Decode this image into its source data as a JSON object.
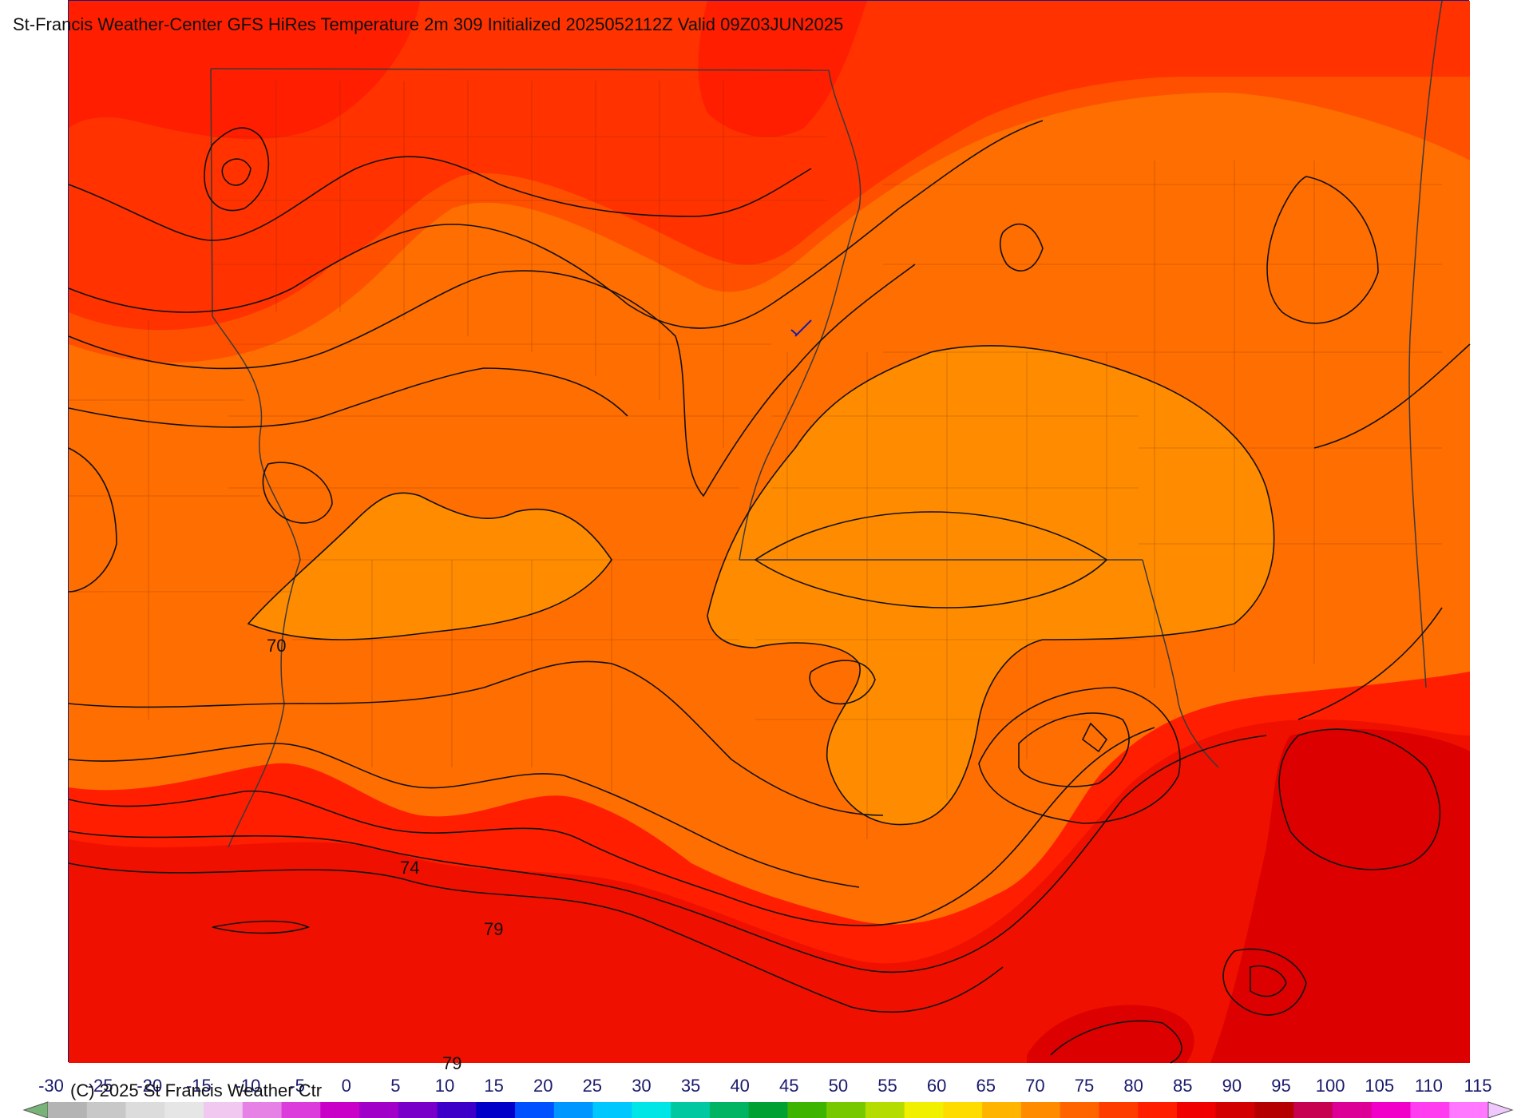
{
  "title": "St-Francis Weather-Center GFS HiRes Temperature 2m  309 Initialized 2025052112Z Valid 09Z03JUN2025",
  "copyright": "(C) 2025 St Francis Weather Ctr",
  "contour_labels": [
    {
      "id": "lbl-70",
      "text": "70"
    },
    {
      "id": "lbl-74",
      "text": "74"
    },
    {
      "id": "lbl-79",
      "text": "79"
    },
    {
      "id": "lbl-79b",
      "text": "79"
    }
  ],
  "colorbar": {
    "ticks": [
      "-30",
      "-25",
      "-20",
      "-15",
      "-10",
      "-5",
      "0",
      "5",
      "10",
      "15",
      "20",
      "25",
      "30",
      "35",
      "40",
      "45",
      "50",
      "55",
      "60",
      "65",
      "70",
      "75",
      "80",
      "85",
      "90",
      "95",
      "100",
      "105",
      "110",
      "115"
    ],
    "colors": [
      "#b4b4b4",
      "#c8c8c8",
      "#dcdcdc",
      "#e6e6e6",
      "#f0c8f0",
      "#e682e6",
      "#dc3cdc",
      "#c800c8",
      "#a000c8",
      "#7800c8",
      "#3c00c8",
      "#0000c8",
      "#0050ff",
      "#0096ff",
      "#00c8ff",
      "#00e6e6",
      "#00c8a0",
      "#00b464",
      "#00a032",
      "#3cb400",
      "#78c800",
      "#b4dc00",
      "#f0f000",
      "#ffdc00",
      "#ffb400",
      "#ff8c00",
      "#ff6400",
      "#ff3c00",
      "#ff1e00",
      "#f00000",
      "#d20000",
      "#b40000",
      "#c80050",
      "#dc0096",
      "#f000c8",
      "#ff3cf0",
      "#ff78ff"
    ],
    "left_arrow_color": "#78b478",
    "right_arrow_color": "#f0c8ff"
  },
  "fill_colors": {
    "band_69": "#ff8c00",
    "band_71": "#ff6e00",
    "band_73": "#ff5000",
    "band_75": "#ff3200",
    "band_77": "#ff1e00",
    "band_79": "#f01000",
    "band_81": "#dc0000",
    "contour": "#111111",
    "border": "#3a3a3a"
  }
}
